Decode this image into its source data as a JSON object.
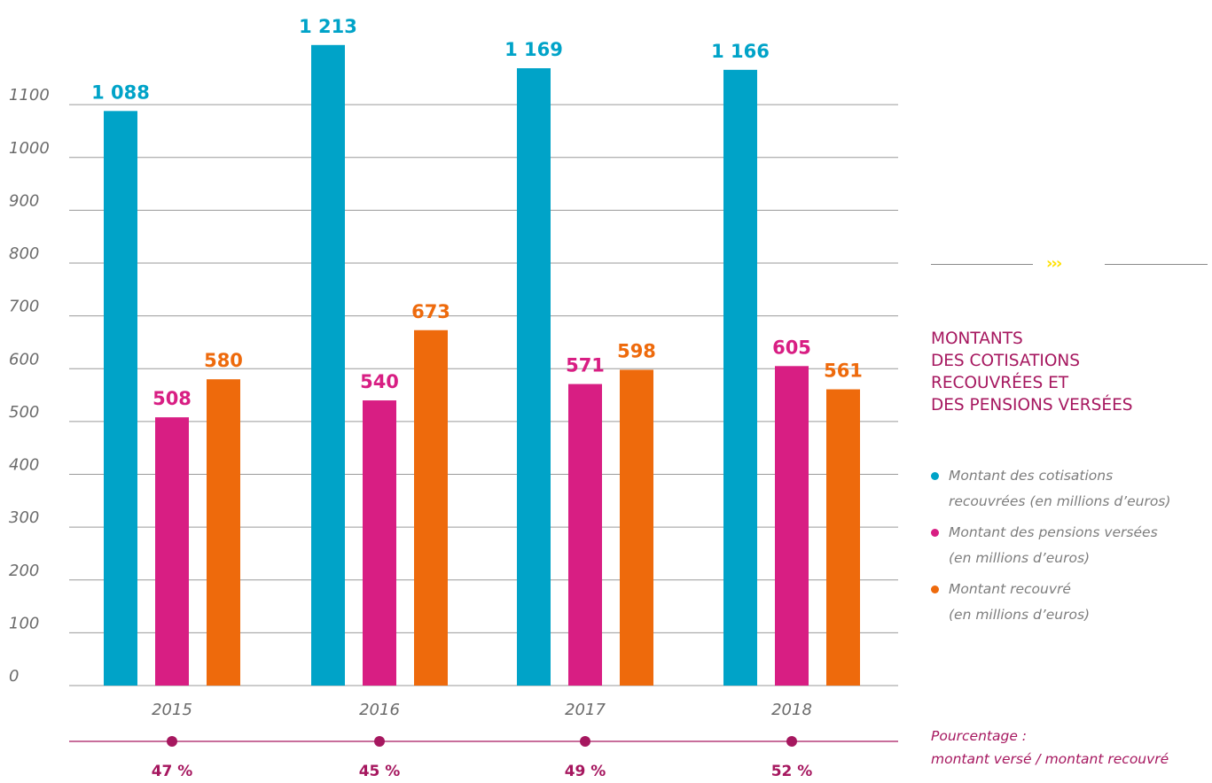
{
  "chart_data": {
    "type": "bar",
    "categories": [
      "2015",
      "2016",
      "2017",
      "2018"
    ],
    "series": [
      {
        "name": "Montant des cotisations recouvrées (en millions d’euros)",
        "color": "#00a3c8",
        "values": [
          1088,
          1213,
          1169,
          1166
        ],
        "labels": [
          "1 088",
          "1 213",
          "1 169",
          "1 166"
        ]
      },
      {
        "name": "Montant des pensions versées (en millions d’euros)",
        "color": "#d81e83",
        "values": [
          508,
          540,
          571,
          605
        ],
        "labels": [
          "508",
          "540",
          "571",
          "605"
        ]
      },
      {
        "name": "Montant recouvré (en millions d’euros)",
        "color": "#ee6a0c",
        "values": [
          580,
          673,
          598,
          561
        ],
        "labels": [
          "580",
          "673",
          "598",
          "561"
        ]
      }
    ],
    "yticks": [
      0,
      100,
      200,
      300,
      400,
      500,
      600,
      700,
      800,
      900,
      1000,
      1100
    ],
    "ylim": [
      0,
      1213
    ],
    "grid": true,
    "percentages": [
      "47 %",
      "45 %",
      "49 %",
      "52 %"
    ],
    "percent_color": "#a6175f"
  },
  "side": {
    "title_lines": [
      "MONTANTS",
      "DES COTISATIONS",
      "RECOUVRÉES ET",
      "DES PENSIONS VERSÉES"
    ],
    "legend": [
      {
        "lines": [
          "Montant des cotisations",
          "recouvrées (en millions d’euros)"
        ],
        "color": "#00a3c8"
      },
      {
        "lines": [
          "Montant des pensions versées",
          "(en millions d’euros)"
        ],
        "color": "#d81e83"
      },
      {
        "lines": [
          "Montant recouvré",
          "(en millions d’euros)"
        ],
        "color": "#ee6a0c"
      }
    ],
    "chevrons": "›››",
    "percent_caption_lines": [
      "Pourcentage :",
      "montant versé / montant recouvré"
    ]
  }
}
